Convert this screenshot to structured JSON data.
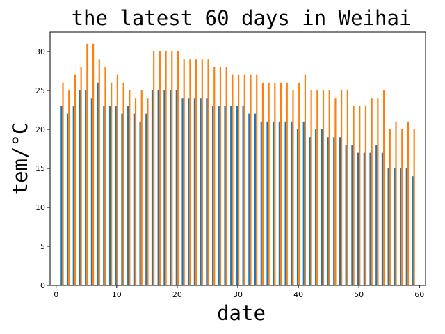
{
  "chart_data": {
    "type": "bar",
    "title": "the latest 60 days in Weihai",
    "xlabel": "date",
    "ylabel": "tem/°C",
    "xlim": [
      -1,
      61
    ],
    "ylim": [
      0,
      32.5
    ],
    "xticks": [
      0,
      10,
      20,
      30,
      40,
      50,
      60
    ],
    "yticks": [
      0,
      5,
      10,
      15,
      20,
      25,
      30
    ],
    "grid": false,
    "colors": [
      "#1f77b4",
      "#ff7f0e"
    ],
    "x": [
      1,
      2,
      3,
      4,
      5,
      6,
      7,
      8,
      9,
      10,
      11,
      12,
      13,
      14,
      15,
      16,
      17,
      18,
      19,
      20,
      21,
      22,
      23,
      24,
      25,
      26,
      27,
      28,
      29,
      30,
      31,
      32,
      33,
      34,
      35,
      36,
      37,
      38,
      39,
      40,
      41,
      42,
      43,
      44,
      45,
      46,
      47,
      48,
      49,
      50,
      51,
      52,
      53,
      54,
      55,
      56,
      57,
      58,
      59
    ],
    "series": [
      {
        "values": [
          23,
          22,
          23,
          25,
          25,
          24,
          26,
          23,
          23,
          23,
          22,
          23,
          22,
          21,
          22,
          25,
          25,
          25,
          25,
          25,
          24,
          24,
          24,
          24,
          24,
          23,
          23,
          23,
          23,
          23,
          23,
          22,
          22,
          21,
          21,
          21,
          21,
          21,
          21,
          20,
          21,
          19,
          20,
          20,
          19,
          19,
          19,
          18,
          18,
          17,
          17,
          17,
          18,
          17,
          15,
          15,
          15,
          15,
          14
        ]
      },
      {
        "values": [
          26,
          25,
          27,
          28,
          31,
          31,
          29,
          28,
          26,
          27,
          26,
          25,
          24,
          25,
          24,
          30,
          30,
          30,
          30,
          30,
          29,
          29,
          29,
          29,
          29,
          28,
          28,
          28,
          27,
          27,
          27,
          27,
          27,
          26,
          26,
          26,
          26,
          26,
          25,
          26,
          27,
          25,
          25,
          25,
          25,
          24,
          25,
          25,
          23,
          23,
          23,
          24,
          24,
          25,
          20,
          21,
          20,
          21,
          20
        ]
      }
    ]
  }
}
